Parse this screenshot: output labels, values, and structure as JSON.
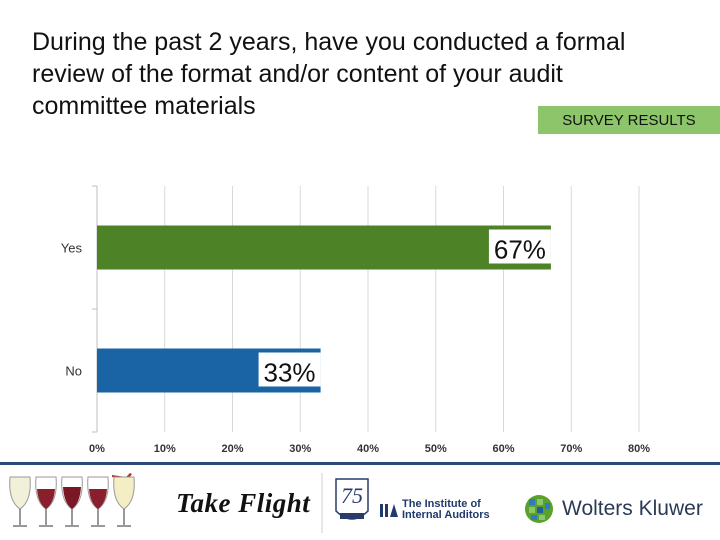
{
  "header": {
    "title": "During the past 2 years, have you conducted a formal review of the format and/or content of your audit committee materials",
    "badge": "SURVEY RESULTS"
  },
  "colors": {
    "bar_yes": "#4e8227",
    "bar_no": "#1a64a5",
    "badge_bg": "#8cc56a",
    "grid": "#d9d9d9",
    "footer_line": "#2e4a7a"
  },
  "chart_data": {
    "type": "bar",
    "orientation": "horizontal",
    "categories": [
      "Yes",
      "No"
    ],
    "values": [
      67,
      33
    ],
    "data_labels": [
      "67%",
      "33%"
    ],
    "xlim": [
      0,
      80
    ],
    "x_ticks": [
      0,
      10,
      20,
      30,
      40,
      50,
      60,
      70,
      80
    ],
    "x_tick_labels": [
      "0%",
      "10%",
      "20%",
      "30%",
      "40%",
      "50%",
      "60%",
      "70%",
      "80%"
    ],
    "grid": true
  },
  "footer": {
    "take_flight": "Take Flight",
    "anniversary_number": "75",
    "iia_line1": "The Institute of",
    "iia_line2": "Internal Auditors",
    "wolters_kluwer": "Wolters Kluwer"
  }
}
